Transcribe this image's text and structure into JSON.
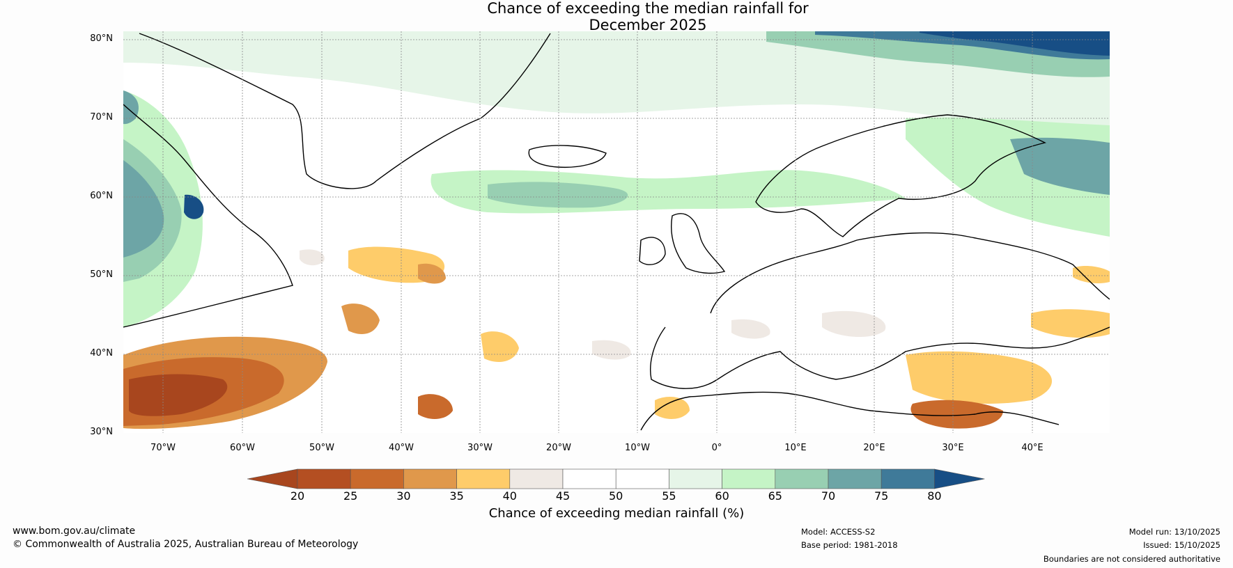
{
  "title": {
    "line1": "Chance of exceeding the median rainfall for",
    "line2": "December 2025"
  },
  "map": {
    "region": "North Atlantic and Europe",
    "lat_labels": [
      "80°N",
      "70°N",
      "60°N",
      "50°N",
      "40°N",
      "30°N"
    ],
    "lon_labels": [
      "70°W",
      "60°W",
      "50°W",
      "40°W",
      "30°W",
      "20°W",
      "10°W",
      "0°",
      "10°E",
      "20°E",
      "30°E",
      "40°E"
    ],
    "lat_range": [
      30,
      80
    ],
    "lon_range": [
      -75,
      50
    ]
  },
  "colorbar": {
    "ticks": [
      "20",
      "25",
      "30",
      "35",
      "40",
      "45",
      "50",
      "55",
      "60",
      "65",
      "70",
      "75",
      "80"
    ],
    "colors": [
      "#a8461e",
      "#b44f22",
      "#c96a2c",
      "#e0984b",
      "#fecc6a",
      "#efe9e4",
      "#ffffff",
      "#ffffff",
      "#e6f5e8",
      "#c5f4c6",
      "#98cfb2",
      "#6da5a6",
      "#3f7a99",
      "#174e85"
    ],
    "label": "Chance of exceeding median rainfall (%)"
  },
  "footer": {
    "website": "www.bom.gov.au/climate",
    "copyright": "© Commonwealth of Australia 2025, Australian Bureau of Meteorology",
    "model": "Model: ACCESS-S2",
    "base_period": "Base period: 1981-2018",
    "model_run": "Model run: 13/10/2025",
    "issued": "Issued: 15/10/2025",
    "disclaimer": "Boundaries are not considered authoritative"
  }
}
